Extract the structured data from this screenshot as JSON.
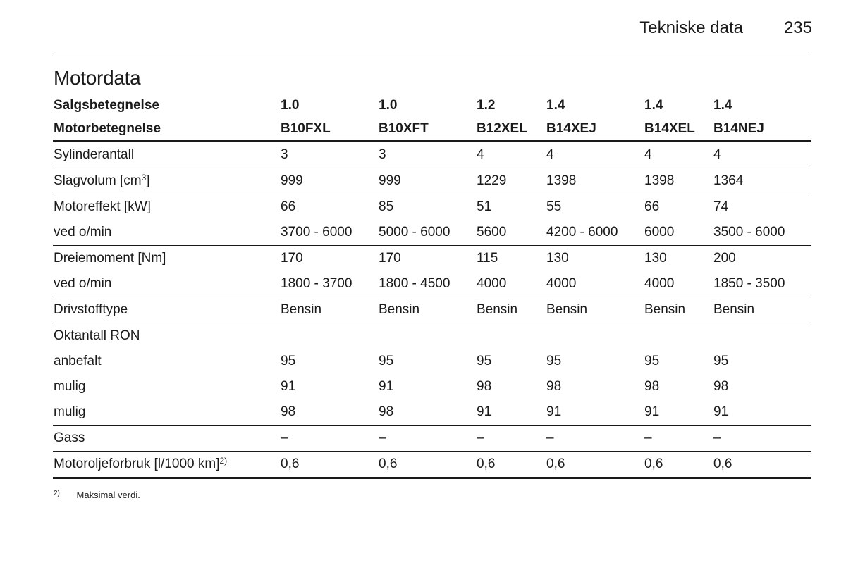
{
  "header": {
    "section": "Tekniske data",
    "page_number": "235"
  },
  "section_title": "Motordata",
  "table": {
    "header_rows": [
      [
        "Salgsbetegnelse",
        "1.0",
        "1.0",
        "1.2",
        "1.4",
        "1.4",
        "1.4"
      ],
      [
        "Motorbetegnelse",
        "B10FXL",
        "B10XFT",
        "B12XEL",
        "B14XEJ",
        "B14XEL",
        "B14NEJ"
      ]
    ],
    "rows": [
      {
        "label": "Sylinderantall",
        "values": [
          "3",
          "3",
          "4",
          "4",
          "4",
          "4"
        ]
      },
      {
        "label": "Slagvolum [cm",
        "sup": "3",
        "label_suffix": "]",
        "values": [
          "999",
          "999",
          "1229",
          "1398",
          "1398",
          "1364"
        ]
      },
      {
        "label": "Motoreffekt [kW]",
        "values": [
          "66",
          "85",
          "51",
          "55",
          "66",
          "74"
        ]
      },
      {
        "label": "ved o/min",
        "values": [
          "3700 - 6000",
          "5000 - 6000",
          "5600",
          "4200 - 6000",
          "6000",
          "3500 - 6000"
        ]
      },
      {
        "label": "Dreiemoment [Nm]",
        "values": [
          "170",
          "170",
          "115",
          "130",
          "130",
          "200"
        ]
      },
      {
        "label": "ved o/min",
        "values": [
          "1800 - 3700",
          "1800 - 4500",
          "4000",
          "4000",
          "4000",
          "1850 - 3500"
        ]
      },
      {
        "label": "Drivstofftype",
        "values": [
          "Bensin",
          "Bensin",
          "Bensin",
          "Bensin",
          "Bensin",
          "Bensin"
        ]
      },
      {
        "label": "Oktantall RON",
        "values": [
          "",
          "",
          "",
          "",
          "",
          ""
        ]
      },
      {
        "label": "anbefalt",
        "values": [
          "95",
          "95",
          "95",
          "95",
          "95",
          "95"
        ]
      },
      {
        "label": "mulig",
        "values": [
          "91",
          "91",
          "98",
          "98",
          "98",
          "98"
        ]
      },
      {
        "label": "mulig",
        "values": [
          "98",
          "98",
          "91",
          "91",
          "91",
          "91"
        ]
      },
      {
        "label": "Gass",
        "values": [
          "–",
          "–",
          "–",
          "–",
          "–",
          "–"
        ]
      },
      {
        "label": "Motoroljeforbruk [l/1000 km]",
        "sup": "2)",
        "label_suffix": "",
        "values": [
          "0,6",
          "0,6",
          "0,6",
          "0,6",
          "0,6",
          "0,6"
        ]
      }
    ]
  },
  "footnote": {
    "marker": "2)",
    "text": "Maksimal verdi."
  }
}
